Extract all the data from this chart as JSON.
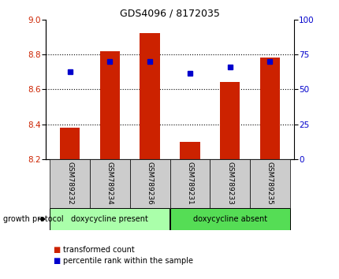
{
  "title": "GDS4096 / 8172035",
  "samples": [
    "GSM789232",
    "GSM789234",
    "GSM789236",
    "GSM789231",
    "GSM789233",
    "GSM789235"
  ],
  "bar_bottoms": [
    8.2,
    8.2,
    8.2,
    8.2,
    8.2,
    8.2
  ],
  "bar_tops": [
    8.38,
    8.82,
    8.92,
    8.3,
    8.64,
    8.78
  ],
  "blue_dots": [
    8.7,
    8.76,
    8.76,
    8.69,
    8.73,
    8.76
  ],
  "ylim_left": [
    8.2,
    9.0
  ],
  "ylim_right": [
    0,
    100
  ],
  "yticks_left": [
    8.2,
    8.4,
    8.6,
    8.8,
    9.0
  ],
  "yticks_right": [
    0,
    25,
    50,
    75,
    100
  ],
  "bar_color": "#cc2200",
  "dot_color": "#0000cc",
  "grid_color": "#000000",
  "bg_color": "#ffffff",
  "group1_label": "doxycycline present",
  "group2_label": "doxycycline absent",
  "group1_color": "#aaffaa",
  "group2_color": "#55dd55",
  "growth_protocol_label": "growth protocol",
  "legend_bar_label": "transformed count",
  "legend_dot_label": "percentile rank within the sample",
  "tick_label_color_left": "#cc2200",
  "tick_label_color_right": "#0000cc",
  "xlabel_bg": "#cccccc",
  "arrow_color": "#444444"
}
